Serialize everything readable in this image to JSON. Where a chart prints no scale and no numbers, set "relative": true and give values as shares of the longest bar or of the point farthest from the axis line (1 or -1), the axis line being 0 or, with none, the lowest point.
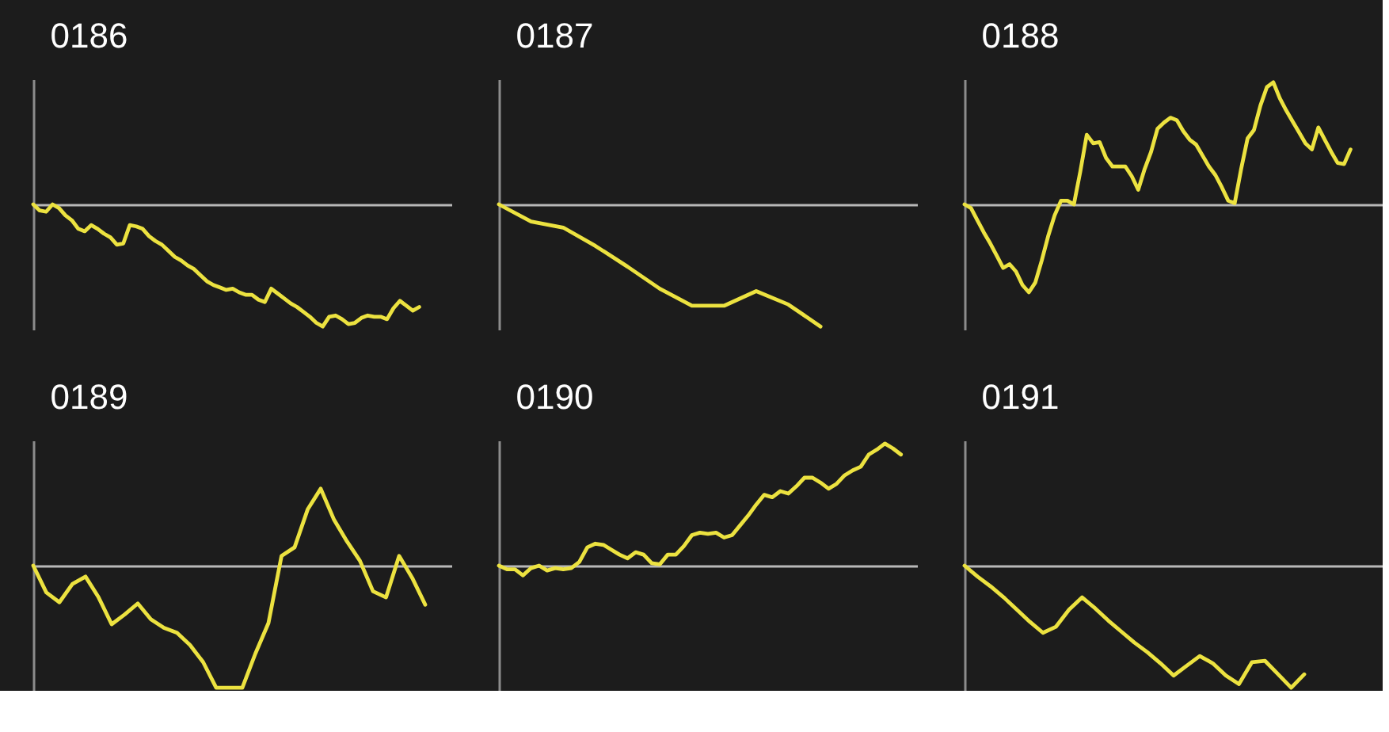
{
  "chart_data": [
    {
      "type": "line",
      "title": "0186",
      "relative": true,
      "color": "#ece240",
      "categories": [
        null,
        null,
        null,
        null,
        null,
        null,
        null,
        null,
        null,
        null,
        null,
        null,
        null,
        null,
        null,
        null,
        null,
        null,
        null,
        null,
        null,
        null,
        null,
        null,
        null,
        null,
        null,
        null,
        null,
        null,
        null,
        null,
        null,
        null,
        null,
        null,
        null,
        null,
        null,
        null,
        null,
        null,
        null,
        null,
        null,
        null,
        null,
        null,
        null,
        null,
        null,
        null,
        null,
        null,
        null,
        null,
        null,
        null,
        null,
        null,
        null,
        null,
        null,
        null,
        null,
        null
      ],
      "values": [
        0,
        -0.05,
        -0.06,
        0,
        -0.03,
        -0.09,
        -0.13,
        -0.2,
        -0.22,
        -0.17,
        -0.2,
        -0.24,
        -0.27,
        -0.33,
        -0.32,
        -0.17,
        -0.18,
        -0.2,
        -0.26,
        -0.3,
        -0.33,
        -0.38,
        -0.43,
        -0.46,
        -0.5,
        -0.53,
        -0.58,
        -0.63,
        -0.66,
        -0.68,
        -0.7,
        -0.69,
        -0.72,
        -0.74,
        -0.74,
        -0.78,
        -0.8,
        -0.69,
        -0.73,
        -0.77,
        -0.81,
        -0.84,
        -0.88,
        -0.92,
        -0.97,
        -1,
        -0.92,
        -0.91,
        -0.94,
        -0.98,
        -0.97,
        -0.93,
        -0.91,
        -0.92,
        -0.92,
        -0.94,
        -0.85,
        -0.79,
        -0.83,
        -0.87,
        -0.84,
        null,
        null,
        null,
        null,
        null
      ]
    },
    {
      "type": "line",
      "title": "0187",
      "relative": true,
      "color": "#ece240",
      "categories": [
        null,
        null,
        null,
        null,
        null,
        null,
        null,
        null,
        null,
        null,
        null,
        null,
        null,
        null
      ],
      "values": [
        0,
        -0.14,
        -0.19,
        -0.34,
        -0.51,
        -0.69,
        -0.83,
        -0.83,
        -0.71,
        -0.82,
        -1,
        null,
        null,
        null
      ]
    },
    {
      "type": "line",
      "title": "0188",
      "relative": true,
      "color": "#ece240",
      "categories": [
        null,
        null,
        null,
        null,
        null,
        null,
        null,
        null,
        null,
        null,
        null,
        null,
        null,
        null,
        null,
        null,
        null,
        null,
        null,
        null,
        null,
        null,
        null,
        null,
        null,
        null,
        null,
        null,
        null,
        null,
        null,
        null,
        null,
        null,
        null,
        null,
        null,
        null,
        null,
        null,
        null,
        null,
        null,
        null,
        null,
        null,
        null,
        null,
        null,
        null,
        null,
        null,
        null,
        null,
        null,
        null,
        null,
        null,
        null,
        null,
        null,
        null,
        null,
        null,
        null,
        null
      ],
      "values": [
        0,
        -0.03,
        -0.13,
        -0.23,
        -0.32,
        -0.42,
        -0.52,
        -0.49,
        -0.55,
        -0.66,
        -0.72,
        -0.64,
        -0.46,
        -0.26,
        -0.09,
        0.03,
        0.03,
        0,
        0.27,
        0.57,
        0.5,
        0.51,
        0.38,
        0.31,
        0.31,
        0.31,
        0.23,
        0.12,
        0.29,
        0.43,
        0.62,
        0.67,
        0.71,
        0.69,
        0.6,
        0.53,
        0.49,
        0.4,
        0.31,
        0.24,
        0.14,
        0.03,
        0.01,
        0.29,
        0.54,
        0.61,
        0.81,
        0.96,
        1,
        0.87,
        0.77,
        0.68,
        0.59,
        0.5,
        0.45,
        0.63,
        0.53,
        0.43,
        0.34,
        0.33,
        0.45,
        null,
        null,
        null,
        null,
        null
      ]
    },
    {
      "type": "line",
      "title": "0189",
      "relative": true,
      "color": "#ece240",
      "categories": [
        null,
        null,
        null,
        null,
        null,
        null,
        null,
        null,
        null,
        null,
        null,
        null,
        null,
        null,
        null,
        null,
        null,
        null,
        null,
        null,
        null,
        null,
        null,
        null,
        null,
        null,
        null,
        null,
        null,
        null,
        null,
        null,
        null
      ],
      "values": [
        0,
        -0.22,
        -0.3,
        -0.15,
        -0.09,
        -0.26,
        -0.48,
        -0.4,
        -0.31,
        -0.44,
        -0.51,
        -0.55,
        -0.65,
        -0.79,
        -1,
        -1,
        -1,
        -0.72,
        -0.47,
        0.08,
        0.15,
        0.46,
        0.63,
        0.38,
        0.2,
        0.04,
        -0.21,
        -0.26,
        0.08,
        -0.1,
        -0.32,
        null,
        null
      ]
    },
    {
      "type": "line",
      "title": "0190",
      "relative": true,
      "color": "#ece240",
      "categories": [
        null,
        null,
        null,
        null,
        null,
        null,
        null,
        null,
        null,
        null,
        null,
        null,
        null,
        null,
        null,
        null,
        null,
        null,
        null,
        null,
        null,
        null,
        null,
        null,
        null,
        null,
        null,
        null,
        null,
        null,
        null,
        null,
        null,
        null,
        null,
        null,
        null,
        null,
        null,
        null,
        null,
        null,
        null,
        null,
        null,
        null,
        null,
        null,
        null,
        null,
        null,
        null,
        null
      ],
      "values": [
        0,
        -0.03,
        -0.03,
        -0.08,
        -0.02,
        0,
        -0.04,
        -0.02,
        -0.03,
        -0.02,
        0.03,
        0.15,
        0.18,
        0.17,
        0.13,
        0.09,
        0.06,
        0.11,
        0.09,
        0.02,
        0.01,
        0.09,
        0.09,
        0.16,
        0.25,
        0.27,
        0.26,
        0.27,
        0.23,
        0.25,
        0.33,
        0.41,
        0.5,
        0.58,
        0.56,
        0.61,
        0.59,
        0.65,
        0.72,
        0.72,
        0.68,
        0.63,
        0.67,
        0.74,
        0.78,
        0.81,
        0.91,
        0.95,
        1,
        0.96,
        0.91,
        null,
        null
      ]
    },
    {
      "type": "line",
      "title": "0191",
      "relative": true,
      "color": "#ece240",
      "categories": [
        null,
        null,
        null,
        null,
        null,
        null,
        null,
        null,
        null,
        null,
        null,
        null,
        null,
        null,
        null,
        null,
        null,
        null,
        null,
        null,
        null,
        null,
        null,
        null,
        null,
        null,
        null,
        null,
        null,
        null,
        null,
        null,
        null
      ],
      "values": [
        0,
        -0.09,
        -0.17,
        -0.26,
        -0.36,
        -0.46,
        -0.55,
        -0.5,
        -0.36,
        -0.26,
        -0.35,
        -0.45,
        -0.54,
        -0.63,
        -0.71,
        -0.8,
        -0.9,
        -0.82,
        -0.74,
        -0.8,
        -0.9,
        -0.97,
        -0.79,
        -0.78,
        -0.89,
        -1,
        -0.89,
        null,
        null,
        null,
        null,
        null,
        null
      ]
    }
  ]
}
